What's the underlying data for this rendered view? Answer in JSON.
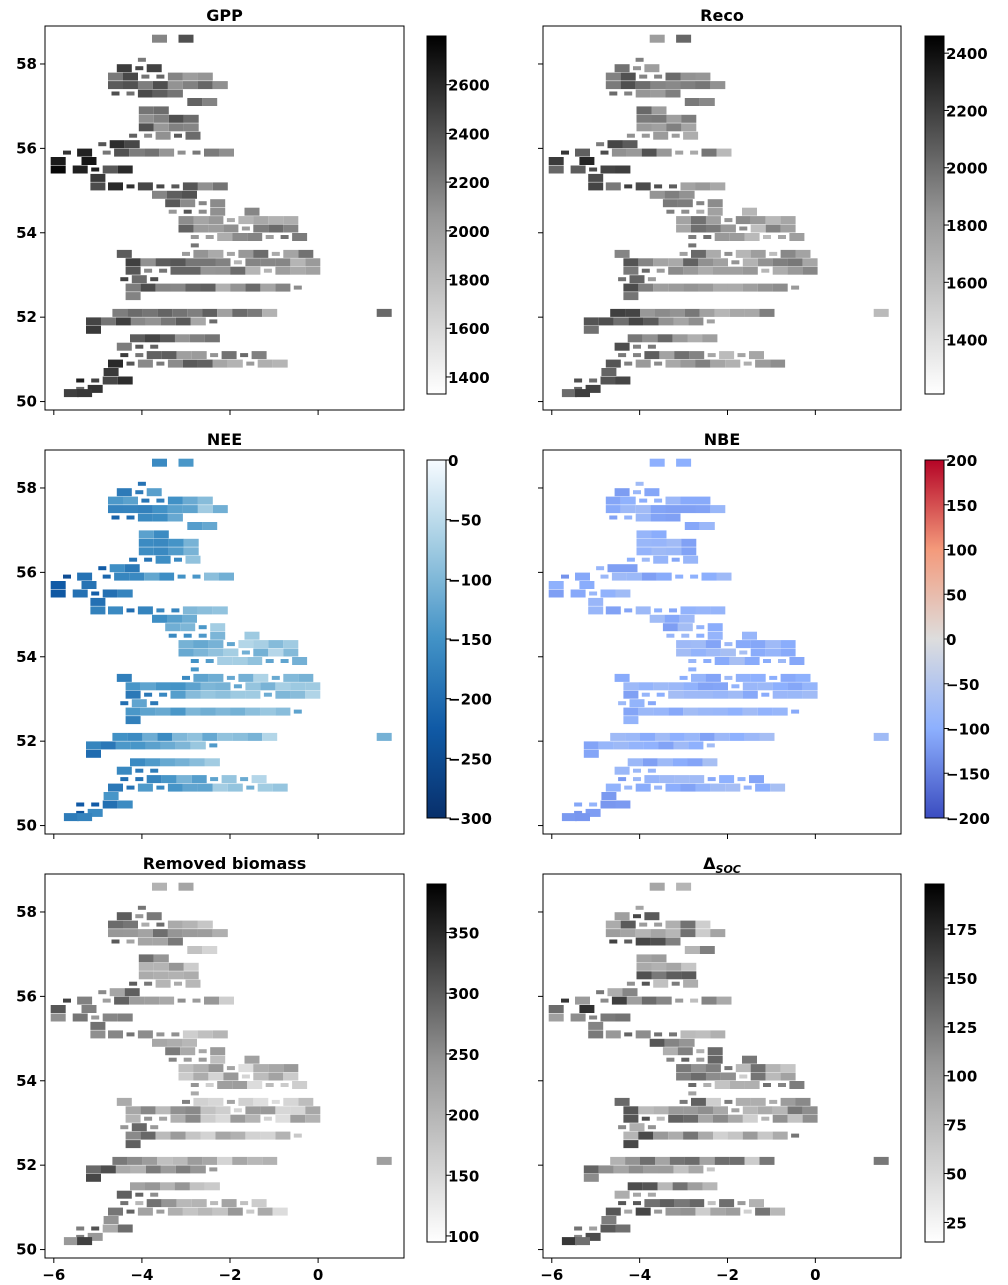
{
  "chart_data": [
    {
      "type": "heatmap",
      "title": "GPP",
      "colormap": "greys",
      "colorbar": {
        "min": 1330,
        "max": 2800,
        "ticks": [
          1400,
          1600,
          1800,
          2000,
          2200,
          2400,
          2600
        ]
      },
      "ylim": [
        49.8,
        58.9
      ],
      "xlim": [
        -6.2,
        1.95
      ],
      "ytick_labels": [
        "50",
        "52",
        "54",
        "56",
        "58"
      ],
      "xtick_labels": [
        "-6",
        "-4",
        "-2",
        "0"
      ],
      "show_xtick_labels": false,
      "notes": "Gridded values over Great Britain"
    },
    {
      "type": "heatmap",
      "title": "Reco",
      "colormap": "greys",
      "colorbar": {
        "min": 1210,
        "max": 2460,
        "ticks": [
          1400,
          1600,
          1800,
          2000,
          2200,
          2400
        ]
      },
      "ylim": [
        49.8,
        58.9
      ],
      "xlim": [
        -6.2,
        1.95
      ],
      "ytick_labels": [
        "50",
        "52",
        "54",
        "56",
        "58"
      ],
      "xtick_labels": [
        "-6",
        "-4",
        "-2",
        "0"
      ],
      "show_xtick_labels": false
    },
    {
      "type": "heatmap",
      "title": "NEE",
      "colormap": "blues_r",
      "colorbar": {
        "min": -300,
        "max": 0,
        "ticks": [
          0,
          -50,
          -100,
          -150,
          -200,
          -250,
          -300
        ]
      },
      "ylim": [
        49.8,
        58.9
      ],
      "xlim": [
        -6.2,
        1.95
      ],
      "ytick_labels": [
        "50",
        "52",
        "54",
        "56",
        "58"
      ],
      "xtick_labels": [
        "-6",
        "-4",
        "-2",
        "0"
      ],
      "show_xtick_labels": false
    },
    {
      "type": "heatmap",
      "title": "NBE",
      "colormap": "coolwarm",
      "colorbar": {
        "min": -200,
        "max": 200,
        "ticks": [
          200,
          150,
          100,
          50,
          0,
          -50,
          -100,
          -150,
          -200
        ]
      },
      "ylim": [
        49.8,
        58.9
      ],
      "xlim": [
        -6.2,
        1.95
      ],
      "ytick_labels": [
        "50",
        "52",
        "54",
        "56",
        "58"
      ],
      "xtick_labels": [
        "-6",
        "-4",
        "-2",
        "0"
      ],
      "show_xtick_labels": false
    },
    {
      "type": "heatmap",
      "title": "Removed biomass",
      "colormap": "greys",
      "colorbar": {
        "min": 95,
        "max": 390,
        "ticks": [
          100,
          150,
          200,
          250,
          300,
          350
        ]
      },
      "ylim": [
        49.8,
        58.9
      ],
      "xlim": [
        -6.2,
        1.95
      ],
      "ytick_labels": [
        "50",
        "52",
        "54",
        "56",
        "58"
      ],
      "xtick_labels": [
        "−6",
        "−4",
        "−2",
        "0"
      ],
      "show_xtick_labels": true
    },
    {
      "type": "heatmap",
      "title": "Δ",
      "title_subscript": "SOC",
      "colormap": "greys",
      "colorbar": {
        "min": 15,
        "max": 198,
        "ticks": [
          25,
          50,
          75,
          100,
          125,
          150,
          175
        ]
      },
      "ylim": [
        49.8,
        58.9
      ],
      "xlim": [
        -6.2,
        1.95
      ],
      "ytick_labels": [
        "50",
        "52",
        "54",
        "56",
        "58"
      ],
      "xtick_labels": [
        "−6",
        "−4",
        "−2",
        "0"
      ],
      "show_xtick_labels": true
    }
  ]
}
